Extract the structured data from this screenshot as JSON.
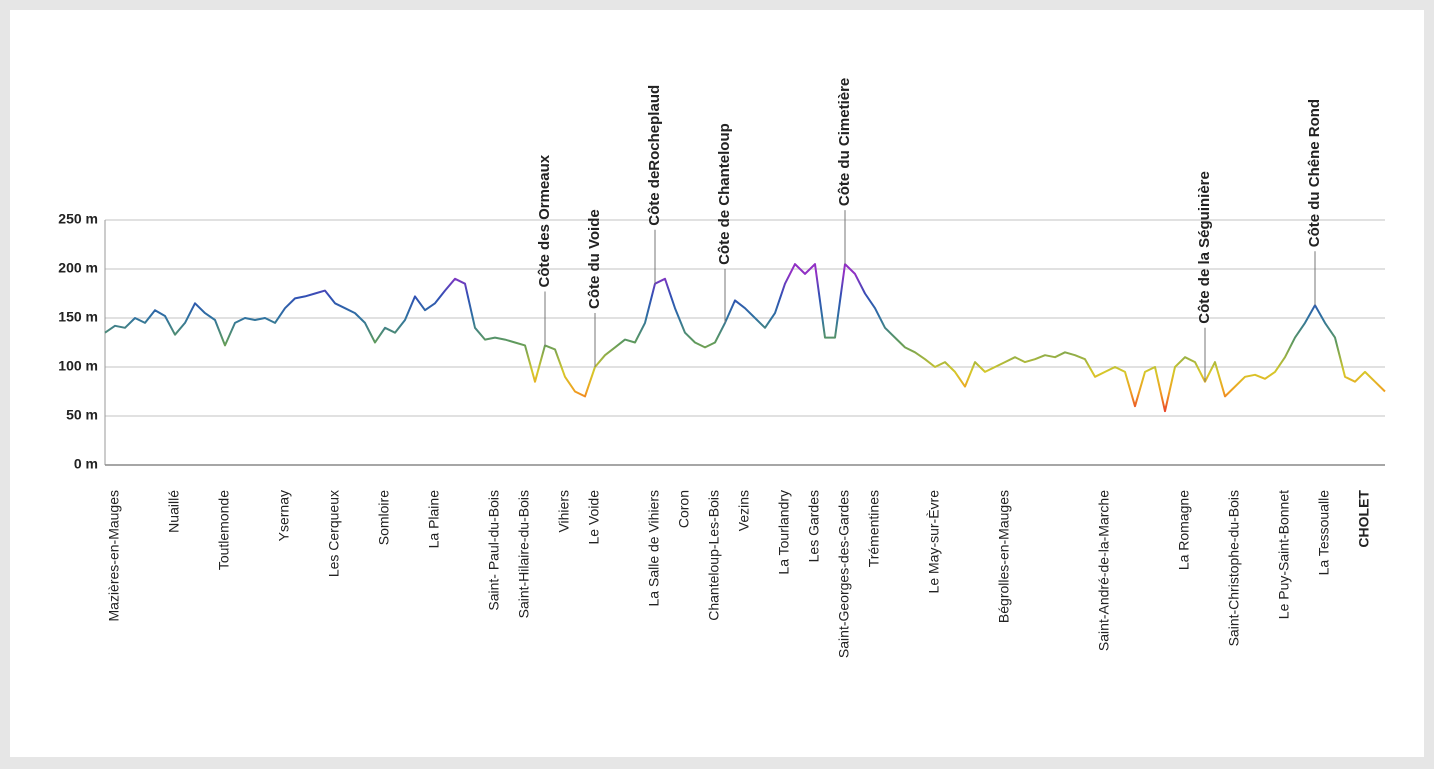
{
  "chart_data": {
    "type": "line",
    "ylim": [
      0,
      250
    ],
    "yticks": [
      {
        "value": 0,
        "label": "0 m"
      },
      {
        "value": 50,
        "label": "50 m"
      },
      {
        "value": 100,
        "label": "100 m"
      },
      {
        "value": 150,
        "label": "150 m"
      },
      {
        "value": 200,
        "label": "200 m"
      },
      {
        "value": 250,
        "label": "250 m"
      }
    ],
    "grid": true,
    "color_scale": [
      {
        "value": 50,
        "color": "#e8302a"
      },
      {
        "value": 75,
        "color": "#f0a020"
      },
      {
        "value": 95,
        "color": "#d6c82a"
      },
      {
        "value": 125,
        "color": "#5f9a5c"
      },
      {
        "value": 150,
        "color": "#2f72a0"
      },
      {
        "value": 172,
        "color": "#3050b4"
      },
      {
        "value": 195,
        "color": "#9030c4"
      }
    ],
    "categories": [
      null,
      "Mazières-en-Mauges",
      null,
      null,
      null,
      null,
      null,
      "Nuaillé",
      null,
      null,
      null,
      null,
      "Toutlemonde",
      null,
      null,
      null,
      null,
      null,
      "Ysernay",
      null,
      null,
      null,
      null,
      "Les Cerqueux",
      null,
      null,
      null,
      null,
      "Somloire",
      null,
      null,
      null,
      null,
      "La Plaine",
      null,
      null,
      null,
      null,
      null,
      "Saint- Paul-du-Bois",
      null,
      null,
      "Saint-Hilaire-du-Bois",
      null,
      null,
      null,
      "Vihiers",
      null,
      null,
      "Le Voide",
      null,
      null,
      null,
      null,
      null,
      "La Salle de Vihiers",
      null,
      null,
      "Coron",
      null,
      null,
      "Chanteloup-Les-Bois",
      null,
      null,
      "Vezins",
      null,
      null,
      null,
      "La Tourlandry",
      null,
      null,
      "Les Gardes",
      null,
      null,
      "Saint-Georges-des-Gardes",
      null,
      null,
      "Trémentines",
      null,
      null,
      null,
      null,
      null,
      "Le May-sur-Èvre",
      null,
      null,
      null,
      null,
      null,
      null,
      "Bégrolles-en-Mauges",
      null,
      null,
      null,
      null,
      null,
      null,
      null,
      null,
      null,
      "Saint-André-de-la-Marche",
      null,
      null,
      null,
      null,
      null,
      null,
      null,
      "La Romagne",
      null,
      null,
      null,
      null,
      "Saint-Christophe-du-Bois",
      null,
      null,
      null,
      null,
      "Le Puy-Saint-Bonnet",
      null,
      null,
      null,
      "La Tessoualle",
      null,
      null,
      null,
      "CHOLET",
      null,
      null
    ],
    "peak_labels": [
      null,
      null,
      null,
      null,
      null,
      null,
      null,
      null,
      null,
      null,
      null,
      null,
      null,
      null,
      null,
      null,
      null,
      null,
      null,
      null,
      null,
      null,
      null,
      null,
      null,
      null,
      null,
      null,
      null,
      null,
      null,
      null,
      null,
      null,
      null,
      null,
      null,
      null,
      null,
      null,
      null,
      null,
      null,
      null,
      "Côte des Ormeaux",
      null,
      null,
      null,
      null,
      "Côte du Voide",
      null,
      null,
      null,
      null,
      null,
      "Côte deRocheplaud",
      null,
      null,
      null,
      null,
      null,
      null,
      "Côte de Chanteloup",
      null,
      null,
      null,
      null,
      null,
      null,
      null,
      null,
      null,
      null,
      null,
      "Côte du Cimetière",
      null,
      null,
      null,
      null,
      null,
      null,
      null,
      null,
      null,
      null,
      null,
      null,
      null,
      null,
      null,
      null,
      null,
      null,
      null,
      null,
      null,
      null,
      null,
      null,
      null,
      null,
      null,
      null,
      null,
      null,
      null,
      null,
      null,
      null,
      null,
      "Côte de la Séguinière",
      null,
      null,
      null,
      null,
      null,
      null,
      null,
      null,
      null,
      null,
      "Côte du Chêne Rond",
      null,
      null,
      null,
      null,
      null,
      null,
      null
    ],
    "values": [
      135,
      142,
      140,
      150,
      145,
      158,
      152,
      133,
      145,
      165,
      155,
      148,
      122,
      145,
      150,
      148,
      150,
      145,
      160,
      170,
      172,
      175,
      178,
      165,
      160,
      155,
      145,
      125,
      140,
      135,
      148,
      172,
      158,
      165,
      178,
      190,
      185,
      140,
      128,
      130,
      128,
      125,
      122,
      85,
      122,
      118,
      90,
      75,
      70,
      100,
      112,
      120,
      128,
      125,
      145,
      185,
      190,
      160,
      135,
      125,
      120,
      125,
      145,
      168,
      160,
      150,
      140,
      155,
      185,
      205,
      195,
      205,
      130,
      130,
      205,
      195,
      175,
      160,
      140,
      130,
      120,
      115,
      108,
      100,
      105,
      95,
      80,
      105,
      95,
      100,
      105,
      110,
      105,
      108,
      112,
      110,
      115,
      112,
      108,
      90,
      95,
      100,
      95,
      60,
      95,
      100,
      55,
      100,
      110,
      105,
      85,
      105,
      70,
      80,
      90,
      92,
      88,
      95,
      110,
      130,
      145,
      163,
      145,
      130,
      90,
      85,
      95,
      85,
      75
    ]
  }
}
